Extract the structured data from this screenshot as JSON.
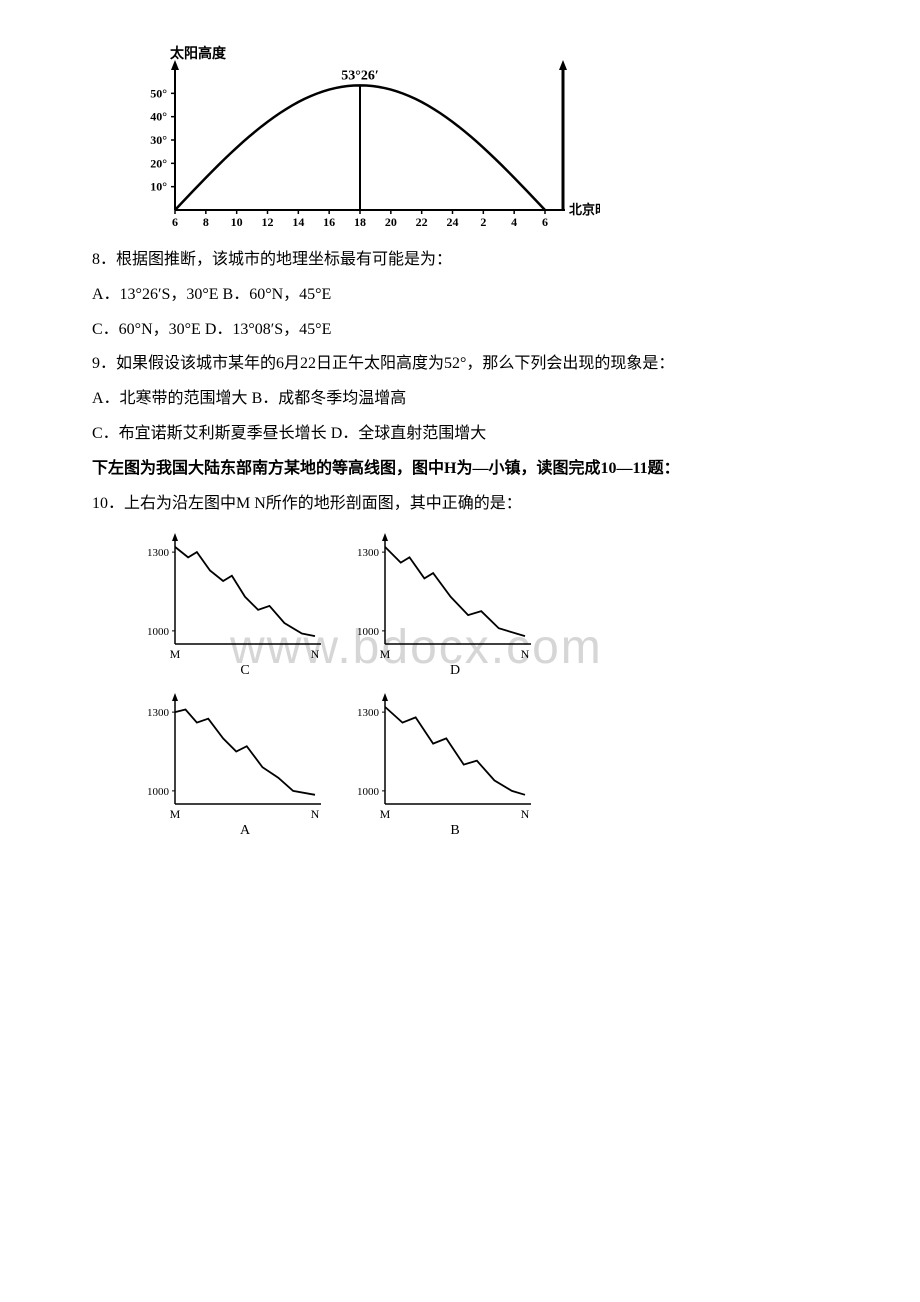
{
  "watermark": "www.bdocx.com",
  "chart1": {
    "ylabel": "太阳高度",
    "xlabel": "北京时间（时）",
    "peak_label": "53°26′",
    "yticks": [
      "10°",
      "20°",
      "30°",
      "40°",
      "50°"
    ],
    "xticks": [
      "6",
      "8",
      "10",
      "12",
      "14",
      "16",
      "18",
      "20",
      "22",
      "24",
      "2",
      "4",
      "6"
    ],
    "curve_color": "#000000",
    "axis_color": "#000000",
    "bg": "#ffffff"
  },
  "q8": {
    "stem": "8．根据图推断，该城市的地理坐标最有可能是为：",
    "optA": "A．13°26′S，30°E",
    "optB": "B．60°N，45°E",
    "optC": " C．60°N，30°E",
    "optD": "D．13°08′S，45°E"
  },
  "q9": {
    "stem": "9．如果假设该城市某年的6月22日正午太阳高度为52°，那么下列会出现的现象是：",
    "optA": "A．北寒带的范围增大",
    "optB": "B．成都冬季均温增高",
    "optC": "C．布宜诺斯艾利斯夏季昼长增长",
    "optD": "D．全球直射范围增大"
  },
  "intro2": "下左图为我国大陆东部南方某地的等高线图，图中H为—小镇，读图完成10—11题：",
  "q10": {
    "stem": "10．上右为沿左图中M N所作的地形剖面图，其中正确的是："
  },
  "profiles": {
    "y_hi": 1300,
    "y_lo": 1000,
    "x_left": "M",
    "x_right": "N",
    "labels": [
      "C",
      "D",
      "A",
      "B"
    ],
    "axis_color": "#000000",
    "line_color": "#000000",
    "bg": "#ffffff",
    "variants": {
      "C": [
        [
          0,
          1320
        ],
        [
          15,
          1280
        ],
        [
          25,
          1300
        ],
        [
          40,
          1230
        ],
        [
          55,
          1190
        ],
        [
          65,
          1210
        ],
        [
          80,
          1130
        ],
        [
          95,
          1080
        ],
        [
          108,
          1095
        ],
        [
          125,
          1030
        ],
        [
          145,
          990
        ],
        [
          160,
          980
        ]
      ],
      "D": [
        [
          0,
          1320
        ],
        [
          18,
          1260
        ],
        [
          28,
          1280
        ],
        [
          45,
          1200
        ],
        [
          55,
          1220
        ],
        [
          75,
          1130
        ],
        [
          95,
          1060
        ],
        [
          110,
          1075
        ],
        [
          130,
          1010
        ],
        [
          160,
          980
        ]
      ],
      "A": [
        [
          0,
          1300
        ],
        [
          12,
          1310
        ],
        [
          25,
          1260
        ],
        [
          38,
          1275
        ],
        [
          55,
          1200
        ],
        [
          70,
          1150
        ],
        [
          82,
          1170
        ],
        [
          100,
          1090
        ],
        [
          118,
          1050
        ],
        [
          135,
          1000
        ],
        [
          160,
          985
        ]
      ],
      "B": [
        [
          0,
          1320
        ],
        [
          20,
          1260
        ],
        [
          35,
          1280
        ],
        [
          55,
          1180
        ],
        [
          70,
          1200
        ],
        [
          90,
          1100
        ],
        [
          105,
          1115
        ],
        [
          125,
          1040
        ],
        [
          145,
          1000
        ],
        [
          160,
          985
        ]
      ]
    }
  }
}
